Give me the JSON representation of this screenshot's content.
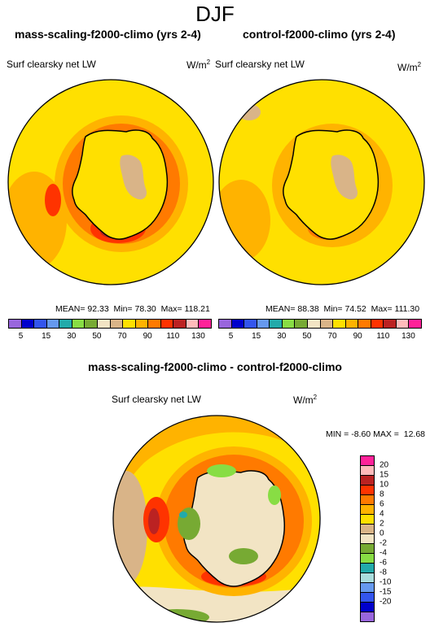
{
  "figure": {
    "season": "DJF"
  },
  "chart_data": [
    {
      "type": "heatmap",
      "title": "mass-scaling-f2000-climo (yrs 2-4)",
      "field": "Surf clearsky net LW",
      "units": "W/m",
      "units_exp": "2",
      "stats": {
        "mean_label": "MEAN=",
        "mean": "92.33",
        "min_label": "Min=",
        "min": "78.30",
        "max_label": "Max=",
        "max": "118.21"
      },
      "colorbar": {
        "colors": [
          "#9966dd",
          "#0000cc",
          "#3355ee",
          "#6699ee",
          "#22aaaa",
          "#88dd44",
          "#77aa33",
          "#f2e4c4",
          "#d9b488",
          "#ffe000",
          "#ffb300",
          "#ff7a00",
          "#ff3300",
          "#bb2222",
          "#ffbbbb",
          "#ff2299"
        ],
        "ticks": [
          "5",
          "15",
          "30",
          "50",
          "70",
          "90",
          "110",
          "130"
        ]
      },
      "regions": [
        "ocean: 70–90 (yellow)",
        "coastal ring: 90–130 (orange/red)",
        "continent interior: 70–90 with 50–70 plateau"
      ]
    },
    {
      "type": "heatmap",
      "title": "control-f2000-climo (yrs 2-4)",
      "field": "Surf clearsky net LW",
      "units": "W/m",
      "units_exp": "2",
      "stats": {
        "mean_label": "MEAN=",
        "mean": "88.38",
        "min_label": "Min=",
        "min": "74.52",
        "max_label": "Max=",
        "max": "111.30"
      },
      "colorbar": {
        "colors": [
          "#9966dd",
          "#0000cc",
          "#3355ee",
          "#6699ee",
          "#22aaaa",
          "#88dd44",
          "#77aa33",
          "#f2e4c4",
          "#d9b488",
          "#ffe000",
          "#ffb300",
          "#ff7a00",
          "#ff3300",
          "#bb2222",
          "#ffbbbb",
          "#ff2299"
        ],
        "ticks": [
          "5",
          "15",
          "30",
          "50",
          "70",
          "90",
          "110",
          "130"
        ]
      },
      "regions": [
        "ocean: 70–90 (yellow)",
        "coastal ring: 90–110 (orange)",
        "continent interior: 70–90 with 50–70 plateau"
      ]
    },
    {
      "type": "heatmap",
      "title": "mass-scaling-f2000-climo - control-f2000-climo",
      "field": "Surf clearsky net LW",
      "units": "W/m",
      "units_exp": "2",
      "stats": {
        "min_label": "MIN =",
        "min": "-8.60",
        "max_label": "MAX =",
        "max": "12.68"
      },
      "colorbar": {
        "colors": [
          "#9966dd",
          "#0000cc",
          "#3355ee",
          "#6699ee",
          "#aadddd",
          "#22aaaa",
          "#88dd44",
          "#77aa33",
          "#f2e4c4",
          "#d9b488",
          "#ffe000",
          "#ffb300",
          "#ff7a00",
          "#ff3300",
          "#bb2222",
          "#ffbbbb",
          "#ff2299"
        ],
        "ticks": [
          "20",
          "15",
          "10",
          "8",
          "6",
          "4",
          "2",
          "0",
          "-2",
          "-4",
          "-6",
          "-8",
          "-10",
          "-15",
          "-20"
        ]
      },
      "regions": [
        "ocean: 2–6 (yellow/orange)",
        "coastal ring: 6–10 (orange/red)",
        "continent: 0–2 with patches of -2–0"
      ]
    }
  ]
}
